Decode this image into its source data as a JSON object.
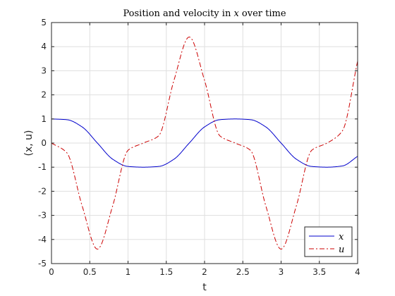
{
  "chart_data": {
    "type": "line",
    "title_prefix": "Position and velocity in ",
    "title_var": "x",
    "title_suffix": " over time",
    "xlabel": "t",
    "ylabel": "(x, u)",
    "xlim": [
      0,
      4
    ],
    "ylim": [
      -5,
      5
    ],
    "xticks": [
      "0",
      "0.5",
      "1",
      "1.5",
      "2",
      "2.5",
      "3",
      "3.5",
      "4"
    ],
    "yticks": [
      "5",
      "4",
      "3",
      "2",
      "1",
      "0",
      "-1",
      "-2",
      "-3",
      "-4",
      "-5"
    ],
    "grid": true,
    "legend_position": "bottom-right",
    "series": [
      {
        "name": "x",
        "color": "#0000cc",
        "line_style": "solid",
        "x": [
          0,
          0.2,
          0.4,
          0.6,
          0.8,
          1.0,
          1.2,
          1.4,
          1.6,
          1.8,
          2.0,
          2.2,
          2.4,
          2.6,
          2.8,
          3.0,
          3.2,
          3.4,
          3.6,
          3.8,
          4.0
        ],
        "y": [
          1.0,
          0.97,
          0.67,
          0.0,
          -0.67,
          -0.97,
          -1.0,
          -0.97,
          -0.67,
          0.0,
          0.67,
          0.97,
          1.0,
          0.97,
          0.67,
          0.0,
          -0.67,
          -0.97,
          -1.0,
          -0.95,
          -0.55
        ]
      },
      {
        "name": "u",
        "color": "#cc0000",
        "line_style": "dash-dot",
        "x": [
          0,
          0.2,
          0.4,
          0.6,
          0.8,
          1.0,
          1.2,
          1.4,
          1.6,
          1.8,
          2.0,
          2.2,
          2.4,
          2.6,
          2.8,
          3.0,
          3.2,
          3.4,
          3.6,
          3.8,
          4.0
        ],
        "y": [
          0.0,
          -0.4,
          -2.6,
          -4.4,
          -2.6,
          -0.3,
          0.0,
          0.3,
          2.6,
          4.4,
          2.6,
          0.3,
          0.0,
          -0.3,
          -2.6,
          -4.4,
          -2.6,
          -0.3,
          0.0,
          0.5,
          3.4
        ]
      }
    ]
  }
}
